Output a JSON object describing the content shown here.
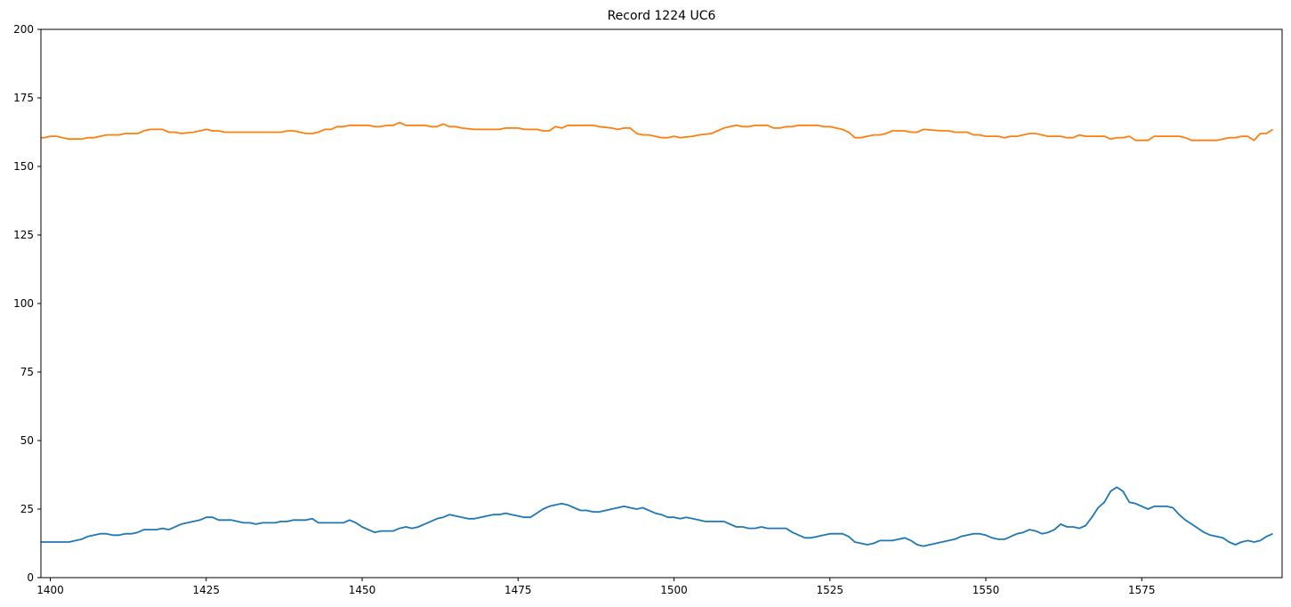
{
  "chart_data": {
    "type": "line",
    "title": "Record 1224 UC6",
    "xlabel": "",
    "ylabel": "",
    "xlim": [
      1398.5,
      1597.5
    ],
    "ylim": [
      0,
      200
    ],
    "xticks": [
      1400,
      1425,
      1450,
      1475,
      1500,
      1525,
      1550,
      1575
    ],
    "yticks": [
      0,
      25,
      50,
      75,
      100,
      125,
      150,
      175,
      200
    ],
    "grid": false,
    "legend": "none",
    "series": [
      {
        "color": "#1f77b4",
        "points": [
          [
            1398.5,
            13
          ],
          [
            1403,
            13
          ],
          [
            1405,
            14
          ],
          [
            1406,
            15
          ],
          [
            1408,
            16
          ],
          [
            1409,
            16
          ],
          [
            1410,
            15.5
          ],
          [
            1411,
            15.5
          ],
          [
            1412,
            16
          ],
          [
            1413,
            16
          ],
          [
            1414,
            16.5
          ],
          [
            1415,
            17.5
          ],
          [
            1417,
            17.5
          ],
          [
            1418,
            18
          ],
          [
            1419,
            17.5
          ],
          [
            1421,
            19.5
          ],
          [
            1424,
            21
          ],
          [
            1425,
            22
          ],
          [
            1426,
            22
          ],
          [
            1427,
            21
          ],
          [
            1429,
            21
          ],
          [
            1431,
            20
          ],
          [
            1432,
            20
          ],
          [
            1433,
            19.5
          ],
          [
            1434,
            20
          ],
          [
            1436,
            20
          ],
          [
            1437,
            20.5
          ],
          [
            1438,
            20.5
          ],
          [
            1439,
            21
          ],
          [
            1441,
            21
          ],
          [
            1442,
            21.5
          ],
          [
            1443,
            20
          ],
          [
            1447,
            20
          ],
          [
            1448,
            21
          ],
          [
            1449,
            20
          ],
          [
            1450,
            18.5
          ],
          [
            1452,
            16.5
          ],
          [
            1453,
            17
          ],
          [
            1455,
            17
          ],
          [
            1456,
            18
          ],
          [
            1457,
            18.5
          ],
          [
            1458,
            18
          ],
          [
            1459,
            18.5
          ],
          [
            1461,
            20.5
          ],
          [
            1462,
            21.5
          ],
          [
            1463,
            22
          ],
          [
            1464,
            23
          ],
          [
            1465,
            22.5
          ],
          [
            1467,
            21.5
          ],
          [
            1468,
            21.5
          ],
          [
            1470,
            22.5
          ],
          [
            1471,
            23
          ],
          [
            1472,
            23
          ],
          [
            1473,
            23.5
          ],
          [
            1474,
            23
          ],
          [
            1476,
            22
          ],
          [
            1477,
            22
          ],
          [
            1478,
            23.5
          ],
          [
            1479,
            25
          ],
          [
            1480,
            26
          ],
          [
            1482,
            27
          ],
          [
            1483,
            26.5
          ],
          [
            1484,
            25.5
          ],
          [
            1485,
            24.5
          ],
          [
            1486,
            24.5
          ],
          [
            1487,
            24
          ],
          [
            1488,
            24
          ],
          [
            1490,
            25
          ],
          [
            1492,
            26
          ],
          [
            1493,
            25.5
          ],
          [
            1494,
            25
          ],
          [
            1495,
            25.5
          ],
          [
            1497,
            23.5
          ],
          [
            1498,
            23
          ],
          [
            1499,
            22
          ],
          [
            1500,
            22
          ],
          [
            1501,
            21.5
          ],
          [
            1502,
            22
          ],
          [
            1504,
            21
          ],
          [
            1505,
            20.5
          ],
          [
            1508,
            20.5
          ],
          [
            1510,
            18.5
          ],
          [
            1511,
            18.5
          ],
          [
            1512,
            18
          ],
          [
            1513,
            18
          ],
          [
            1514,
            18.5
          ],
          [
            1515,
            18
          ],
          [
            1518,
            18
          ],
          [
            1519,
            16.5
          ],
          [
            1521,
            14.5
          ],
          [
            1522,
            14.5
          ],
          [
            1524,
            15.5
          ],
          [
            1525,
            16
          ],
          [
            1527,
            16
          ],
          [
            1528,
            15
          ],
          [
            1529,
            13
          ],
          [
            1531,
            12
          ],
          [
            1532,
            12.5
          ],
          [
            1533,
            13.5
          ],
          [
            1535,
            13.5
          ],
          [
            1537,
            14.5
          ],
          [
            1538,
            13.5
          ],
          [
            1539,
            12
          ],
          [
            1540,
            11.5
          ],
          [
            1542,
            12.5
          ],
          [
            1544,
            13.5
          ],
          [
            1545,
            14
          ],
          [
            1546,
            15
          ],
          [
            1548,
            16
          ],
          [
            1549,
            16
          ],
          [
            1550,
            15.5
          ],
          [
            1551,
            14.5
          ],
          [
            1552,
            14
          ],
          [
            1553,
            14
          ],
          [
            1555,
            16
          ],
          [
            1556,
            16.5
          ],
          [
            1557,
            17.5
          ],
          [
            1558,
            17
          ],
          [
            1559,
            16
          ],
          [
            1560,
            16.5
          ],
          [
            1561,
            17.5
          ],
          [
            1562,
            19.5
          ],
          [
            1563,
            18.5
          ],
          [
            1564,
            18.5
          ],
          [
            1565,
            18
          ],
          [
            1566,
            19
          ],
          [
            1567,
            22
          ],
          [
            1568,
            25.5
          ],
          [
            1569,
            27.5
          ],
          [
            1570,
            31.5
          ],
          [
            1571,
            33
          ],
          [
            1572,
            31.5
          ],
          [
            1573,
            27.5
          ],
          [
            1574,
            27
          ],
          [
            1576,
            25
          ],
          [
            1577,
            26
          ],
          [
            1579,
            26
          ],
          [
            1580,
            25.5
          ],
          [
            1581,
            23
          ],
          [
            1582,
            21
          ],
          [
            1583,
            19.5
          ],
          [
            1585,
            16.5
          ],
          [
            1586,
            15.5
          ],
          [
            1587,
            15
          ],
          [
            1588,
            14.5
          ],
          [
            1589,
            13
          ],
          [
            1590,
            12
          ],
          [
            1591,
            13
          ],
          [
            1592,
            13.5
          ],
          [
            1593,
            13
          ],
          [
            1594,
            13.5
          ],
          [
            1595,
            15
          ],
          [
            1596,
            16
          ]
        ]
      },
      {
        "color": "#ff7f0e",
        "points": [
          [
            1398.5,
            160.5
          ],
          [
            1399,
            160.5
          ],
          [
            1400,
            161
          ],
          [
            1401,
            161
          ],
          [
            1402,
            160.5
          ],
          [
            1403,
            160
          ],
          [
            1405,
            160
          ],
          [
            1406,
            160.5
          ],
          [
            1407,
            160.5
          ],
          [
            1408,
            161
          ],
          [
            1409,
            161.5
          ],
          [
            1411,
            161.5
          ],
          [
            1412,
            162
          ],
          [
            1413,
            162
          ],
          [
            1414,
            162
          ],
          [
            1415,
            163
          ],
          [
            1416,
            163.5
          ],
          [
            1418,
            163.5
          ],
          [
            1419,
            162.5
          ],
          [
            1420,
            162.5
          ],
          [
            1421,
            162
          ],
          [
            1423,
            162.5
          ],
          [
            1424,
            163
          ],
          [
            1425,
            163.5
          ],
          [
            1426,
            163
          ],
          [
            1427,
            163
          ],
          [
            1428,
            162.5
          ],
          [
            1429,
            162.5
          ],
          [
            1437,
            162.5
          ],
          [
            1438,
            163
          ],
          [
            1439,
            163
          ],
          [
            1440,
            162.5
          ],
          [
            1441,
            162
          ],
          [
            1442,
            162
          ],
          [
            1443,
            162.5
          ],
          [
            1444,
            163.5
          ],
          [
            1445,
            163.5
          ],
          [
            1446,
            164.5
          ],
          [
            1447,
            164.5
          ],
          [
            1448,
            165
          ],
          [
            1451,
            165
          ],
          [
            1452,
            164.5
          ],
          [
            1453,
            164.5
          ],
          [
            1454,
            165
          ],
          [
            1455,
            165
          ],
          [
            1456,
            166
          ],
          [
            1457,
            165
          ],
          [
            1458,
            165
          ],
          [
            1459,
            165
          ],
          [
            1460,
            165
          ],
          [
            1461,
            164.5
          ],
          [
            1462,
            164.5
          ],
          [
            1463,
            165.5
          ],
          [
            1464,
            164.5
          ],
          [
            1465,
            164.5
          ],
          [
            1466,
            164
          ],
          [
            1468,
            163.5
          ],
          [
            1472,
            163.5
          ],
          [
            1473,
            164
          ],
          [
            1474,
            164
          ],
          [
            1475,
            164
          ],
          [
            1476,
            163.5
          ],
          [
            1477,
            163.5
          ],
          [
            1478,
            163.5
          ],
          [
            1479,
            163
          ],
          [
            1480,
            163
          ],
          [
            1481,
            164.5
          ],
          [
            1482,
            164
          ],
          [
            1483,
            165
          ],
          [
            1484,
            165
          ],
          [
            1485,
            165
          ],
          [
            1486,
            165
          ],
          [
            1487,
            165
          ],
          [
            1488,
            164.5
          ],
          [
            1490,
            164
          ],
          [
            1491,
            163.5
          ],
          [
            1492,
            164
          ],
          [
            1493,
            164
          ],
          [
            1494,
            162
          ],
          [
            1495,
            161.5
          ],
          [
            1496,
            161.5
          ],
          [
            1497,
            161
          ],
          [
            1498,
            160.5
          ],
          [
            1499,
            160.5
          ],
          [
            1500,
            161
          ],
          [
            1501,
            160.5
          ],
          [
            1503,
            161
          ],
          [
            1504,
            161.5
          ],
          [
            1506,
            162
          ],
          [
            1507,
            163
          ],
          [
            1508,
            164
          ],
          [
            1509,
            164.5
          ],
          [
            1510,
            165
          ],
          [
            1511,
            164.5
          ],
          [
            1512,
            164.5
          ],
          [
            1513,
            165
          ],
          [
            1515,
            165
          ],
          [
            1516,
            164
          ],
          [
            1517,
            164
          ],
          [
            1518,
            164.5
          ],
          [
            1519,
            164.5
          ],
          [
            1520,
            165
          ],
          [
            1523,
            165
          ],
          [
            1524,
            164.5
          ],
          [
            1525,
            164.5
          ],
          [
            1526,
            164
          ],
          [
            1527,
            163.5
          ],
          [
            1528,
            162.5
          ],
          [
            1529,
            160.5
          ],
          [
            1530,
            160.5
          ],
          [
            1531,
            161
          ],
          [
            1532,
            161.5
          ],
          [
            1533,
            161.5
          ],
          [
            1534,
            162
          ],
          [
            1535,
            163
          ],
          [
            1537,
            163
          ],
          [
            1538,
            162.5
          ],
          [
            1539,
            162.5
          ],
          [
            1540,
            163.5
          ],
          [
            1543,
            163
          ],
          [
            1544,
            163
          ],
          [
            1545,
            162.5
          ],
          [
            1547,
            162.5
          ],
          [
            1548,
            161.5
          ],
          [
            1549,
            161.5
          ],
          [
            1550,
            161
          ],
          [
            1552,
            161
          ],
          [
            1553,
            160.5
          ],
          [
            1554,
            161
          ],
          [
            1555,
            161
          ],
          [
            1556,
            161.5
          ],
          [
            1557,
            162
          ],
          [
            1558,
            162
          ],
          [
            1559,
            161.5
          ],
          [
            1560,
            161
          ],
          [
            1562,
            161
          ],
          [
            1563,
            160.5
          ],
          [
            1564,
            160.5
          ],
          [
            1565,
            161.5
          ],
          [
            1566,
            161
          ],
          [
            1569,
            161
          ],
          [
            1570,
            160
          ],
          [
            1571,
            160.5
          ],
          [
            1572,
            160.5
          ],
          [
            1573,
            161
          ],
          [
            1574,
            159.5
          ],
          [
            1576,
            159.5
          ],
          [
            1577,
            161
          ],
          [
            1578,
            161
          ],
          [
            1581,
            161
          ],
          [
            1582,
            160.5
          ],
          [
            1583,
            159.5
          ],
          [
            1584,
            159.5
          ],
          [
            1585,
            159.5
          ],
          [
            1586,
            159.5
          ],
          [
            1587,
            159.5
          ],
          [
            1588,
            160
          ],
          [
            1589,
            160.5
          ],
          [
            1590,
            160.5
          ],
          [
            1591,
            161
          ],
          [
            1592,
            161
          ],
          [
            1593,
            159.5
          ],
          [
            1594,
            162
          ],
          [
            1595,
            162
          ],
          [
            1596,
            163.5
          ]
        ]
      }
    ]
  }
}
